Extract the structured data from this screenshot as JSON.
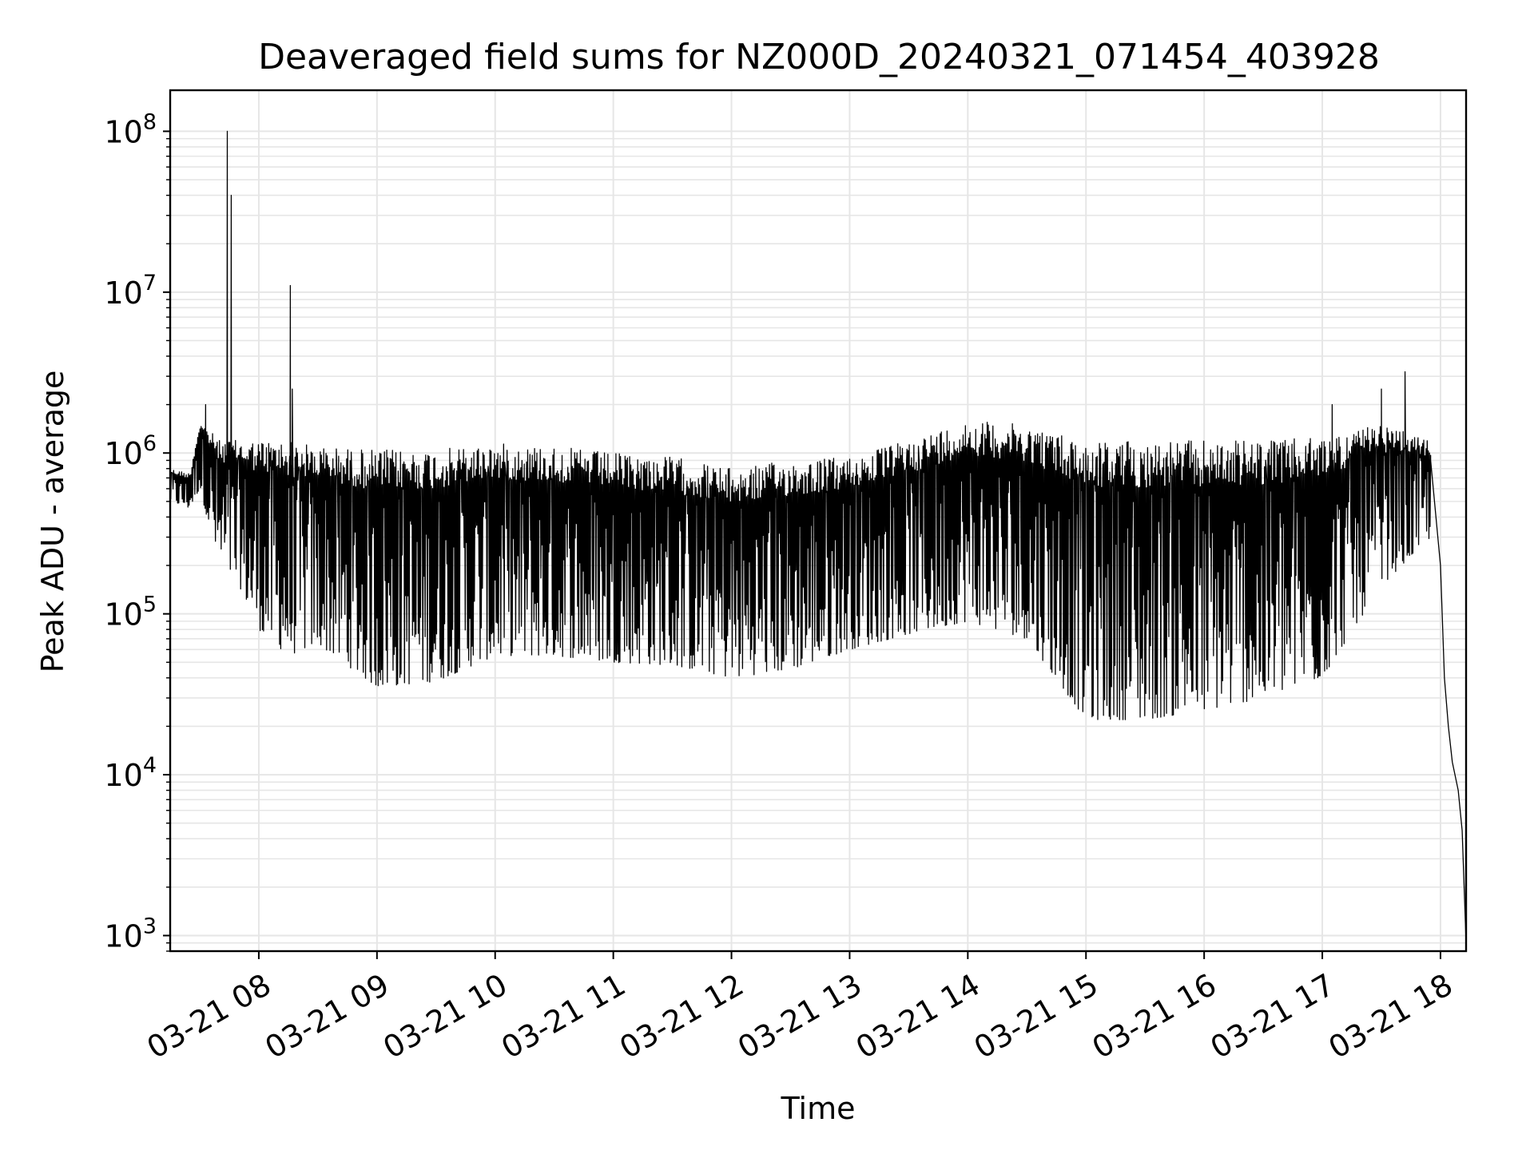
{
  "chart_data": {
    "type": "line",
    "title": "Deaveraged field sums for NZ000D_20240321_071454_403928",
    "xlabel": "Time",
    "ylabel": "Peak ADU - average",
    "yscale": "log",
    "ylim": [
      800,
      180000000
    ],
    "xlim": [
      "2024-03-21 07:15",
      "2024-03-21 18:13"
    ],
    "grid": true,
    "grid_color": "#e6e6e6",
    "line_color": "#000000",
    "x_ticks": [
      {
        "value": "2024-03-21 08:00",
        "label": "03-21 08"
      },
      {
        "value": "2024-03-21 09:00",
        "label": "03-21 09"
      },
      {
        "value": "2024-03-21 10:00",
        "label": "03-21 10"
      },
      {
        "value": "2024-03-21 11:00",
        "label": "03-21 11"
      },
      {
        "value": "2024-03-21 12:00",
        "label": "03-21 12"
      },
      {
        "value": "2024-03-21 13:00",
        "label": "03-21 13"
      },
      {
        "value": "2024-03-21 14:00",
        "label": "03-21 14"
      },
      {
        "value": "2024-03-21 15:00",
        "label": "03-21 15"
      },
      {
        "value": "2024-03-21 16:00",
        "label": "03-21 16"
      },
      {
        "value": "2024-03-21 17:00",
        "label": "03-21 17"
      },
      {
        "value": "2024-03-21 18:00",
        "label": "03-21 18"
      }
    ],
    "y_ticks": [
      {
        "value": 1000,
        "base": "10",
        "exp": "3"
      },
      {
        "value": 10000,
        "base": "10",
        "exp": "4"
      },
      {
        "value": 100000,
        "base": "10",
        "exp": "5"
      },
      {
        "value": 1000000,
        "base": "10",
        "exp": "6"
      },
      {
        "value": 10000000,
        "base": "10",
        "exp": "7"
      },
      {
        "value": 100000000,
        "base": "10",
        "exp": "8"
      }
    ],
    "series": [
      {
        "envelope": [
          {
            "t": "2024-03-21 07:15",
            "upper": 800000,
            "lower": 500000
          },
          {
            "t": "2024-03-21 07:25",
            "upper": 750000,
            "lower": 450000
          },
          {
            "t": "2024-03-21 07:30",
            "upper": 1600000,
            "lower": 600000
          },
          {
            "t": "2024-03-21 07:40",
            "upper": 1200000,
            "lower": 200000
          },
          {
            "t": "2024-03-21 07:50",
            "upper": 1200000,
            "lower": 150000
          },
          {
            "t": "2024-03-21 08:00",
            "upper": 1200000,
            "lower": 80000
          },
          {
            "t": "2024-03-21 08:15",
            "upper": 1200000,
            "lower": 55000
          },
          {
            "t": "2024-03-21 08:30",
            "upper": 1100000,
            "lower": 65000
          },
          {
            "t": "2024-03-21 09:00",
            "upper": 1050000,
            "lower": 35000
          },
          {
            "t": "2024-03-21 09:30",
            "upper": 1050000,
            "lower": 38000
          },
          {
            "t": "2024-03-21 10:00",
            "upper": 1150000,
            "lower": 55000
          },
          {
            "t": "2024-03-21 10:30",
            "upper": 1100000,
            "lower": 55000
          },
          {
            "t": "2024-03-21 11:00",
            "upper": 1000000,
            "lower": 50000
          },
          {
            "t": "2024-03-21 11:30",
            "upper": 950000,
            "lower": 48000
          },
          {
            "t": "2024-03-21 12:00",
            "upper": 800000,
            "lower": 40000
          },
          {
            "t": "2024-03-21 12:30",
            "upper": 900000,
            "lower": 45000
          },
          {
            "t": "2024-03-21 13:00",
            "upper": 950000,
            "lower": 60000
          },
          {
            "t": "2024-03-21 13:30",
            "upper": 1200000,
            "lower": 75000
          },
          {
            "t": "2024-03-21 14:00",
            "upper": 1600000,
            "lower": 90000
          },
          {
            "t": "2024-03-21 14:30",
            "upper": 1500000,
            "lower": 70000
          },
          {
            "t": "2024-03-21 15:00",
            "upper": 1200000,
            "lower": 22000
          },
          {
            "t": "2024-03-21 15:30",
            "upper": 1200000,
            "lower": 22000
          },
          {
            "t": "2024-03-21 16:00",
            "upper": 1200000,
            "lower": 25000
          },
          {
            "t": "2024-03-21 16:30",
            "upper": 1200000,
            "lower": 30000
          },
          {
            "t": "2024-03-21 17:00",
            "upper": 1250000,
            "lower": 40000
          },
          {
            "t": "2024-03-21 17:30",
            "upper": 1500000,
            "lower": 150000
          },
          {
            "t": "2024-03-21 17:55",
            "upper": 1200000,
            "lower": 300000
          }
        ],
        "spikes": [
          {
            "t": "2024-03-21 07:44",
            "value": 100000000
          },
          {
            "t": "2024-03-21 07:46",
            "value": 40000000
          },
          {
            "t": "2024-03-21 08:16",
            "value": 11000000
          },
          {
            "t": "2024-03-21 07:33",
            "value": 2000000
          },
          {
            "t": "2024-03-21 08:17",
            "value": 2500000
          },
          {
            "t": "2024-03-21 17:42",
            "value": 3200000
          },
          {
            "t": "2024-03-21 17:30",
            "value": 2500000
          },
          {
            "t": "2024-03-21 17:05",
            "value": 2000000
          }
        ],
        "tail": [
          {
            "t": "2024-03-21 17:55",
            "value": 900000
          },
          {
            "t": "2024-03-21 18:00",
            "value": 200000
          },
          {
            "t": "2024-03-21 18:02",
            "value": 40000
          },
          {
            "t": "2024-03-21 18:04",
            "value": 20000
          },
          {
            "t": "2024-03-21 18:06",
            "value": 12000
          },
          {
            "t": "2024-03-21 18:09",
            "value": 8000
          },
          {
            "t": "2024-03-21 18:11",
            "value": 4500
          },
          {
            "t": "2024-03-21 18:13",
            "value": 900
          }
        ]
      }
    ]
  }
}
